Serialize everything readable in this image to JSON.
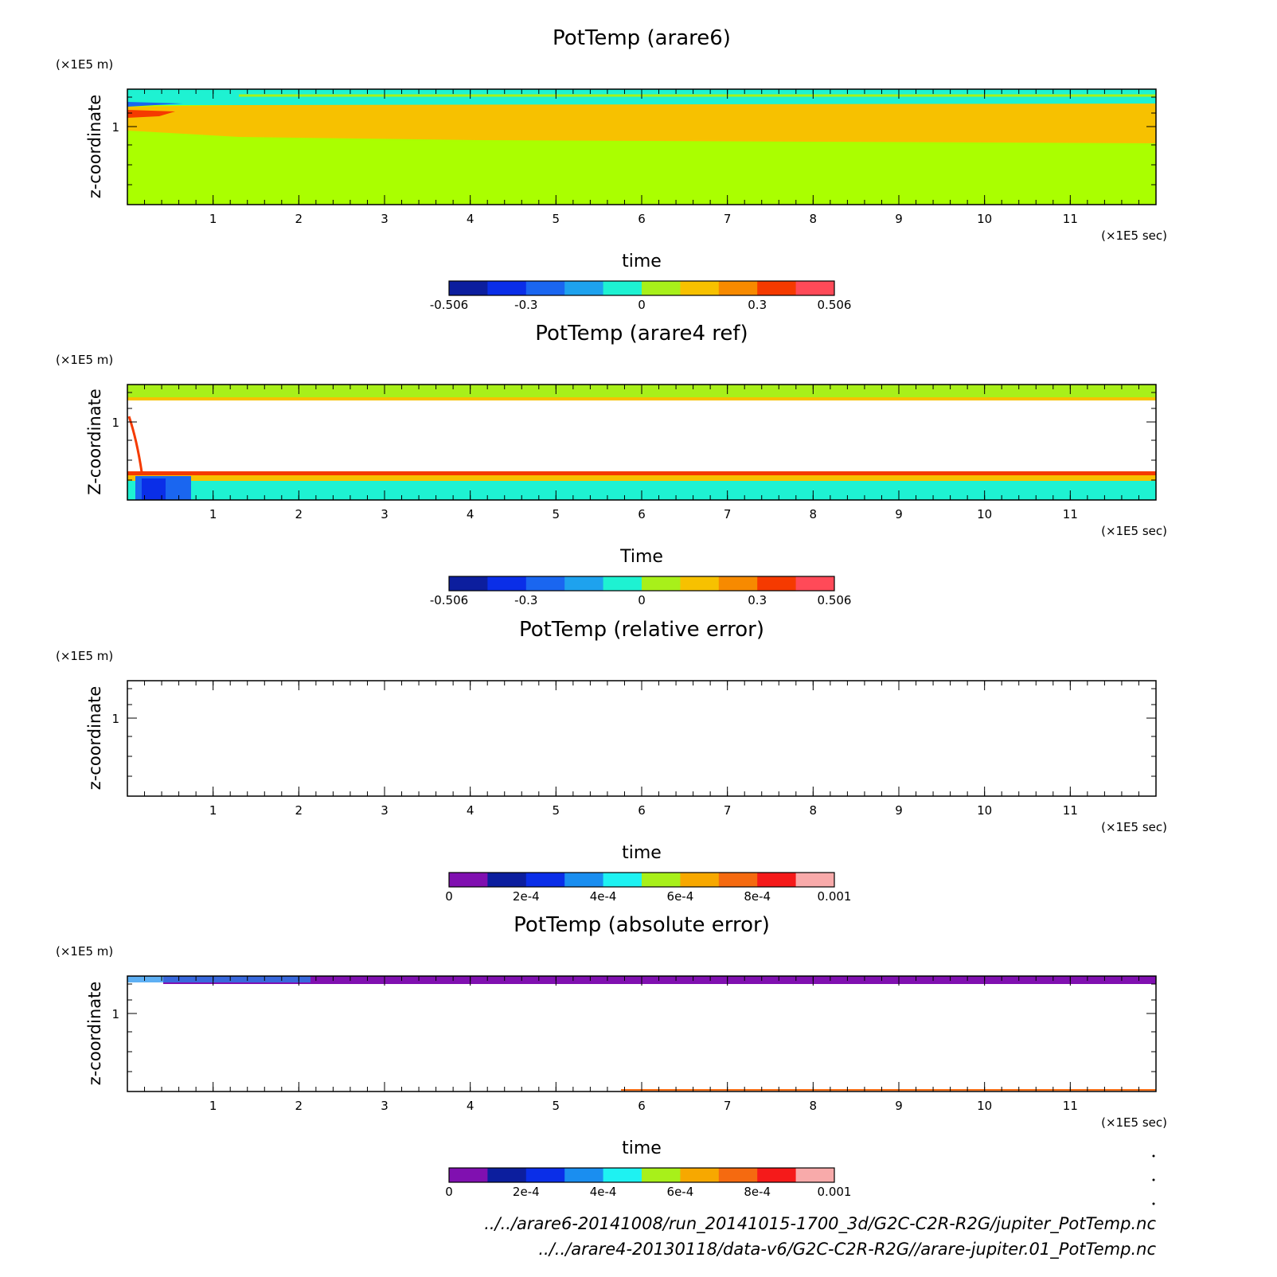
{
  "chart_data": [
    {
      "type": "heatmap",
      "title": "PotTemp (arare6)",
      "xlabel": "time",
      "ylabel": "z-coordinate",
      "x_unit": "(×1E5 sec)",
      "y_unit": "(×1E5 m)",
      "xlim": [
        0,
        12
      ],
      "x_ticks": [
        "1",
        "2",
        "3",
        "4",
        "5",
        "6",
        "7",
        "8",
        "9",
        "10",
        "11"
      ],
      "y_ticks": [
        "1"
      ],
      "colorbar": {
        "colors": [
          "#0c1e9e",
          "#0a2ee8",
          "#1a66f0",
          "#1ea2ee",
          "#1ef2d2",
          "#a8f01a",
          "#f7c100",
          "#f78a00",
          "#f53a00",
          "#ff4a58"
        ],
        "labels": [
          "-0.506",
          "-0.3",
          "0",
          "0.3",
          "0.506"
        ],
        "label_positions": [
          0,
          0.2,
          0.5,
          0.8,
          1
        ]
      },
      "field_description": "mostly near-zero anomaly; positive band near z≈1"
    },
    {
      "type": "heatmap",
      "title": "PotTemp (arare4 ref)",
      "xlabel": "Time",
      "ylabel": "Z-coordinate",
      "x_unit": "(×1E5 sec)",
      "y_unit": "(×1E5 m)",
      "xlim": [
        0,
        12
      ],
      "x_ticks": [
        "1",
        "2",
        "3",
        "4",
        "5",
        "6",
        "7",
        "8",
        "9",
        "10",
        "11"
      ],
      "y_ticks": [
        "1"
      ],
      "colorbar": {
        "colors": [
          "#0c1e9e",
          "#0a2ee8",
          "#1a66f0",
          "#1ea2ee",
          "#1ef2d2",
          "#a8f01a",
          "#f7c100",
          "#f78a00",
          "#f53a00",
          "#ff4a58"
        ],
        "labels": [
          "-0.506",
          "-0.3",
          "0",
          "0.3",
          "0.506"
        ],
        "label_positions": [
          0,
          0.2,
          0.5,
          0.8,
          1
        ]
      }
    },
    {
      "type": "heatmap",
      "title": "PotTemp (relative error)",
      "xlabel": "time",
      "ylabel": "z-coordinate",
      "x_unit": "(×1E5 sec)",
      "y_unit": "(×1E5 m)",
      "xlim": [
        0,
        12
      ],
      "x_ticks": [
        "1",
        "2",
        "3",
        "4",
        "5",
        "6",
        "7",
        "8",
        "9",
        "10",
        "11"
      ],
      "y_ticks": [
        "1"
      ],
      "colorbar": {
        "colors": [
          "#8010b0",
          "#0c1e9e",
          "#0a2ee8",
          "#1a8ef0",
          "#1ef2f2",
          "#a8f01a",
          "#f7a800",
          "#f56a10",
          "#f51a1a",
          "#f8aaaa"
        ],
        "labels": [
          "0",
          "2e-4",
          "4e-4",
          "6e-4",
          "8e-4",
          "0.001"
        ],
        "label_positions": [
          0,
          0.2,
          0.4,
          0.6,
          0.8,
          1
        ]
      }
    },
    {
      "type": "heatmap",
      "title": "PotTemp (absolute error)",
      "xlabel": "time",
      "ylabel": "z-coordinate",
      "x_unit": "(×1E5 sec)",
      "y_unit": "(×1E5 m)",
      "xlim": [
        0,
        12
      ],
      "x_ticks": [
        "1",
        "2",
        "3",
        "4",
        "5",
        "6",
        "7",
        "8",
        "9",
        "10",
        "11"
      ],
      "y_ticks": [
        "1"
      ],
      "colorbar": {
        "colors": [
          "#8010b0",
          "#0c1e9e",
          "#0a2ee8",
          "#1a8ef0",
          "#1ef2f2",
          "#a8f01a",
          "#f7a800",
          "#f56a10",
          "#f51a1a",
          "#f8aaaa"
        ],
        "labels": [
          "0",
          "2e-4",
          "4e-4",
          "6e-4",
          "8e-4",
          "0.001"
        ],
        "label_positions": [
          0,
          0.2,
          0.4,
          0.6,
          0.8,
          1
        ]
      }
    }
  ],
  "files": [
    "../../arare6-20141008/run_20141015-1700_3d/G2C-C2R-R2G/jupiter_PotTemp.nc",
    "../../arare4-20130118/data-v6/G2C-C2R-R2G//arare-jupiter.01_PotTemp.nc"
  ]
}
